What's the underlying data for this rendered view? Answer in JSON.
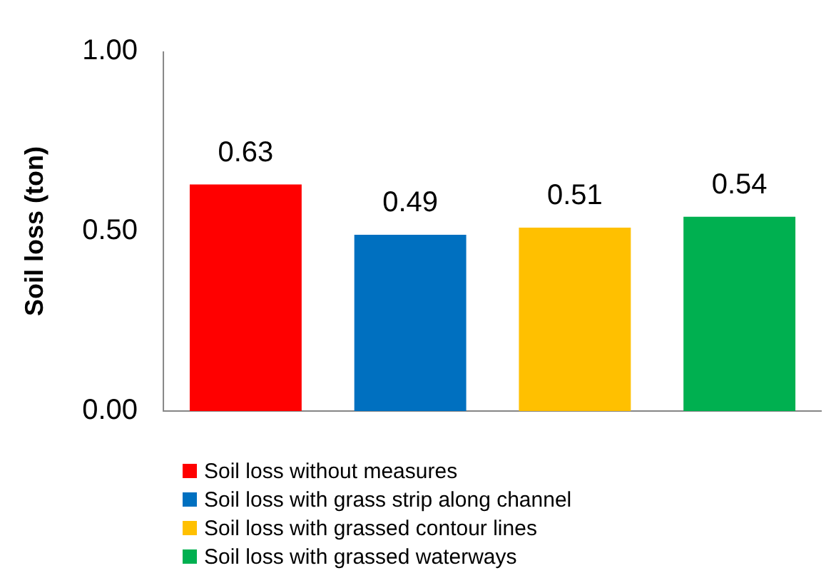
{
  "chart_data": {
    "type": "bar",
    "ylabel": "Soil loss (ton)",
    "categories": [
      null
    ],
    "series": [
      {
        "name": "Soil loss without measures",
        "color": "#ff0000",
        "values": [
          0.63
        ]
      },
      {
        "name": "Soil loss with grass strip along channel",
        "color": "#0070c0",
        "values": [
          0.49
        ]
      },
      {
        "name": "Soil loss with grassed contour lines",
        "color": "#ffc000",
        "values": [
          0.51
        ]
      },
      {
        "name": "Soil loss with grassed waterways",
        "color": "#00b050",
        "values": [
          0.54
        ]
      }
    ],
    "ylim": [
      0,
      1
    ],
    "yticks": [
      {
        "value": 0,
        "label": "0.00"
      },
      {
        "value": 0.5,
        "label": "0.50"
      },
      {
        "value": 1,
        "label": "1.00"
      }
    ],
    "grid": false,
    "legend": "bottom",
    "data_labels": true
  }
}
